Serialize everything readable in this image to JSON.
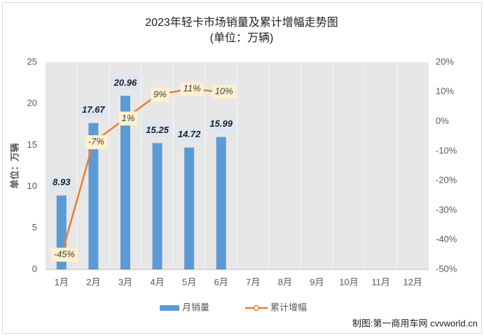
{
  "chart_data": {
    "type": "bar",
    "title": "2023年轻卡市场销量及累计增幅走势图",
    "subtitle": "(单位：万辆)",
    "y_axis_label": "单位：万辆",
    "categories": [
      "1月",
      "2月",
      "3月",
      "4月",
      "5月",
      "6月",
      "7月",
      "8月",
      "9月",
      "10月",
      "11月",
      "12月"
    ],
    "series": [
      {
        "name": "月销量",
        "type": "bar",
        "color": "#5b9bd5",
        "values": [
          8.93,
          17.67,
          20.96,
          15.25,
          14.72,
          15.99,
          null,
          null,
          null,
          null,
          null,
          null
        ]
      },
      {
        "name": "累计增幅",
        "type": "line",
        "axis": "y2",
        "color": "#ed7d31",
        "values": [
          -45,
          -7,
          1,
          9,
          11,
          10,
          null,
          null,
          null,
          null,
          null,
          null
        ],
        "value_labels": [
          "-45%",
          "-7%",
          "1%",
          "9%",
          "11%",
          "10%",
          null,
          null,
          null,
          null,
          null,
          null
        ]
      }
    ],
    "ylim": [
      0,
      25
    ],
    "yticks": [
      0,
      5,
      10,
      15,
      20,
      25
    ],
    "y2lim": [
      -50,
      20
    ],
    "y2ticks": [
      {
        "value": -50,
        "label": "-50%"
      },
      {
        "value": -40,
        "label": "-40%"
      },
      {
        "value": -30,
        "label": "-30%"
      },
      {
        "value": -20,
        "label": "-20%"
      },
      {
        "value": -10,
        "label": "-10%"
      },
      {
        "value": 0,
        "label": "0%"
      },
      {
        "value": 10,
        "label": "10%"
      },
      {
        "value": 20,
        "label": "20%"
      }
    ],
    "legend": "bottom",
    "footer": "制图:第一商用车网 cvvworld.cn"
  }
}
